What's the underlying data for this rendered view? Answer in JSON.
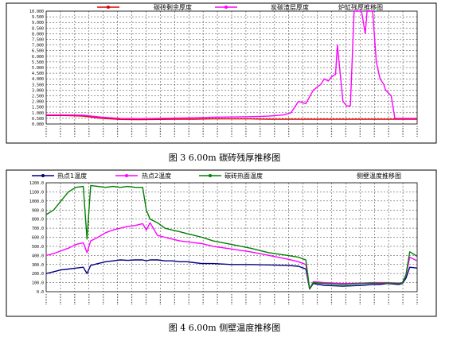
{
  "chart_data": [
    {
      "type": "line",
      "caption": "图 3 6.00m 碳砖残厚推移图",
      "title": "炉缸残厚推移图",
      "ylim": [
        0,
        10
      ],
      "yticks": [
        "0.000",
        "0.500",
        "1.000",
        "1.500",
        "2.000",
        "2.500",
        "3.000",
        "3.500",
        "4.000",
        "4.500",
        "5.000",
        "5.500",
        "6.000",
        "6.500",
        "7.000",
        "7.500",
        "8.000",
        "8.500",
        "9.000",
        "9.500",
        "10.000"
      ],
      "xlim": [
        0,
        100
      ],
      "x": [
        0,
        5,
        10,
        15,
        20,
        25,
        30,
        35,
        40,
        45,
        50,
        55,
        60,
        62,
        64,
        66,
        68,
        70,
        72,
        74,
        75,
        76,
        77,
        78,
        78.5,
        80,
        81,
        82,
        83,
        85,
        86,
        86.5,
        88,
        89,
        90,
        91,
        91.5,
        93,
        94,
        95,
        96,
        98,
        100
      ],
      "series": [
        {
          "name": "碳砖剩余厚度",
          "color": "#e00000",
          "values": [
            0.75,
            0.75,
            0.7,
            0.5,
            0.4,
            0.38,
            0.4,
            0.42,
            0.42,
            0.45,
            0.45,
            0.45,
            0.42,
            0.42,
            0.42,
            0.42,
            0.42,
            0.42,
            0.42,
            0.42,
            0.42,
            0.42,
            0.42,
            0.42,
            0.42,
            0.42,
            0.42,
            0.42,
            0.42,
            0.42,
            0.42,
            0.42,
            0.42,
            0.42,
            0.42,
            0.42,
            0.42,
            0.42,
            0.42,
            0.42,
            0.42,
            0.42,
            0.42
          ]
        },
        {
          "name": "炭碳渣层厚度",
          "color": "#ff00ff",
          "values": [
            0.8,
            0.8,
            0.78,
            0.6,
            0.5,
            0.48,
            0.5,
            0.52,
            0.55,
            0.6,
            0.62,
            0.65,
            0.7,
            0.75,
            0.8,
            1.0,
            2.0,
            1.8,
            3.0,
            3.5,
            4.0,
            3.8,
            4.2,
            4.4,
            7.0,
            2.0,
            1.6,
            1.6,
            10.0,
            10.0,
            8.0,
            10.0,
            10.0,
            5.5,
            4.0,
            3.5,
            3.0,
            2.5,
            0.5,
            0.5,
            0.5,
            0.5,
            0.5
          ]
        }
      ]
    },
    {
      "type": "line",
      "caption": "图 4 6.00m 侧壁温度推移图",
      "title": "侧壁温度推移图",
      "ylim": [
        0,
        1200
      ],
      "yticks": [
        "0.0",
        "100.0",
        "200.0",
        "300.0",
        "400.0",
        "500.0",
        "600.0",
        "700.0",
        "800.0",
        "900.0",
        "1000.0",
        "1100.0",
        "1200.0"
      ],
      "xlim": [
        0,
        100
      ],
      "x": [
        0,
        2,
        4,
        6,
        8,
        10,
        11,
        12,
        14,
        16,
        18,
        20,
        22,
        24,
        26,
        27,
        28,
        30,
        32,
        34,
        36,
        38,
        40,
        42,
        45,
        50,
        55,
        60,
        65,
        68,
        70,
        71,
        72,
        75,
        80,
        85,
        88,
        90,
        92,
        95,
        96,
        97,
        98,
        100
      ],
      "series": [
        {
          "name": "热点1温度",
          "color": "#000080",
          "values": [
            200,
            220,
            240,
            250,
            260,
            270,
            200,
            290,
            310,
            330,
            340,
            350,
            345,
            350,
            350,
            340,
            350,
            350,
            340,
            340,
            330,
            330,
            320,
            310,
            310,
            300,
            300,
            295,
            290,
            280,
            250,
            30,
            90,
            70,
            60,
            70,
            80,
            80,
            90,
            80,
            90,
            150,
            270,
            260
          ]
        },
        {
          "name": "热点2温度",
          "color": "#ff00ff",
          "values": [
            400,
            420,
            450,
            480,
            520,
            540,
            430,
            560,
            600,
            650,
            680,
            700,
            720,
            730,
            750,
            680,
            760,
            620,
            600,
            580,
            560,
            550,
            540,
            530,
            500,
            470,
            440,
            400,
            360,
            330,
            300,
            30,
            110,
            100,
            90,
            95,
            100,
            100,
            100,
            95,
            100,
            180,
            380,
            340
          ]
        },
        {
          "name": "碳砖热面温度",
          "color": "#008000",
          "values": [
            850,
            900,
            1000,
            1100,
            1150,
            1160,
            580,
            1170,
            1160,
            1150,
            1160,
            1150,
            1160,
            1150,
            1150,
            900,
            800,
            760,
            700,
            680,
            660,
            640,
            620,
            600,
            560,
            520,
            480,
            430,
            400,
            380,
            350,
            30,
            100,
            90,
            80,
            90,
            95,
            90,
            95,
            90,
            95,
            190,
            440,
            390
          ]
        }
      ]
    }
  ]
}
